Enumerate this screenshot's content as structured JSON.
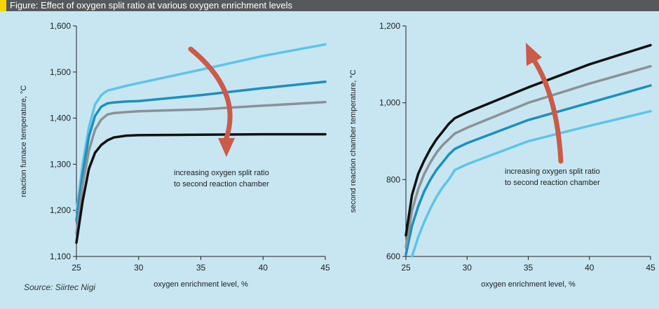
{
  "header": {
    "title": "Figure: Effect of oxygen split ratio at various oxygen enrichment levels"
  },
  "source": "Source: Siirtec Nigi",
  "colors": {
    "background": "#c7e6f2",
    "header_bar": "#55595b",
    "header_accent": "#f5d400",
    "arrow": "#cc5a48",
    "series": [
      "#5ec4e8",
      "#1c8fbf",
      "#8c9196",
      "#111111"
    ]
  },
  "chart_data": [
    {
      "type": "line",
      "xlabel": "oxygen enrichment level, %",
      "ylabel": "reaction furnace temperature, °C",
      "xlim": [
        25,
        45
      ],
      "ylim": [
        1100,
        1600
      ],
      "xticks": [
        25,
        30,
        35,
        40,
        45
      ],
      "yticks": [
        1100,
        1200,
        1300,
        1400,
        1500,
        1600
      ],
      "ytick_labels": [
        "1,100",
        "1,200",
        "1,300",
        "1,400",
        "1,500",
        "1,600"
      ],
      "grid": false,
      "annotation": {
        "lines": [
          "increasing oxygen split ratio",
          "to second reaction chamber"
        ],
        "arrow_direction": "down"
      },
      "series": [
        {
          "x": [
            25,
            25.5,
            26,
            26.5,
            27,
            27.5,
            28,
            29,
            30,
            35,
            40,
            45
          ],
          "y": [
            1195,
            1300,
            1380,
            1430,
            1450,
            1460,
            1463,
            1470,
            1476,
            1505,
            1535,
            1560
          ]
        },
        {
          "x": [
            25,
            25.5,
            26,
            26.5,
            27,
            27.5,
            28,
            29,
            30,
            35,
            40,
            45
          ],
          "y": [
            1178,
            1280,
            1360,
            1405,
            1425,
            1432,
            1434,
            1436,
            1437,
            1450,
            1465,
            1479
          ]
        },
        {
          "x": [
            25,
            25.5,
            26,
            26.5,
            27,
            27.5,
            28,
            29,
            30,
            35,
            40,
            45
          ],
          "y": [
            1150,
            1255,
            1330,
            1375,
            1397,
            1408,
            1411,
            1413,
            1415,
            1419,
            1427,
            1435
          ]
        },
        {
          "x": [
            25,
            25.5,
            26,
            26.5,
            27,
            27.5,
            28,
            29,
            30,
            35,
            40,
            45
          ],
          "y": [
            1130,
            1220,
            1290,
            1325,
            1342,
            1352,
            1358,
            1362,
            1363,
            1364,
            1365,
            1365
          ]
        }
      ]
    },
    {
      "type": "line",
      "xlabel": "oxygen enrichment level, %",
      "ylabel": "second reaction chamber temperature, °C",
      "xlim": [
        25,
        45
      ],
      "ylim": [
        600,
        1200
      ],
      "xticks": [
        25,
        30,
        35,
        40,
        45
      ],
      "yticks": [
        600,
        800,
        1000,
        1200
      ],
      "ytick_labels": [
        "600",
        "800",
        "1,000",
        "1,200"
      ],
      "grid": false,
      "annotation": {
        "lines": [
          "increasing oxygen split ratio",
          "to second reaction chamber"
        ],
        "arrow_direction": "up"
      },
      "series": [
        {
          "x": [
            25.5,
            26,
            26.5,
            27,
            27.5,
            28,
            28.5,
            29,
            30,
            35,
            40,
            45
          ],
          "y": [
            600,
            650,
            690,
            725,
            755,
            780,
            800,
            825,
            840,
            900,
            940,
            978
          ]
        },
        {
          "x": [
            25,
            25.5,
            26,
            26.5,
            27,
            27.5,
            28,
            28.5,
            29,
            30,
            35,
            40,
            45
          ],
          "y": [
            605,
            680,
            730,
            770,
            800,
            825,
            845,
            865,
            880,
            895,
            955,
            1000,
            1045
          ]
        },
        {
          "x": [
            25,
            25.5,
            26,
            26.5,
            27,
            27.5,
            28,
            28.5,
            29,
            30,
            35,
            40,
            45
          ],
          "y": [
            625,
            720,
            775,
            815,
            845,
            870,
            890,
            905,
            920,
            935,
            1000,
            1050,
            1095
          ]
        },
        {
          "x": [
            25,
            25.5,
            26,
            26.5,
            27,
            27.5,
            28,
            28.5,
            29,
            30,
            35,
            40,
            45
          ],
          "y": [
            655,
            760,
            815,
            850,
            880,
            905,
            925,
            945,
            960,
            975,
            1040,
            1100,
            1150
          ]
        }
      ]
    }
  ]
}
